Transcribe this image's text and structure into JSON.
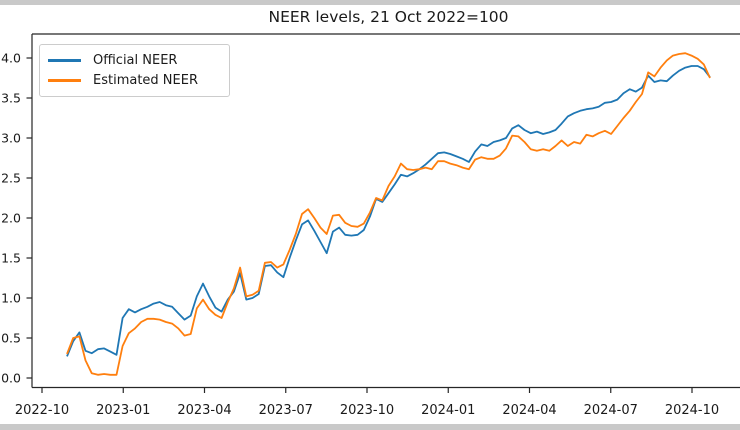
{
  "figure": {
    "border_color": "#c9c9c9",
    "background_color": "#ffffff",
    "axis_color": "#262626",
    "text_color": "#1a1a1a"
  },
  "chart_data": {
    "type": "line",
    "title": "NEER levels, 21 Oct 2022=100",
    "grid": false,
    "legend_position": "upper-left",
    "x_axis": {
      "tick_labels": [
        "2022-10",
        "2023-01",
        "2023-04",
        "2023-07",
        "2023-10",
        "2024-01",
        "2024-04",
        "2024-07",
        "2024-10"
      ]
    },
    "y_axis": {
      "tick_labels_visible": [
        "0.0",
        "0.5",
        "1.0",
        "1.5",
        "2.0",
        "2.5",
        "3.0",
        "3.5",
        "4.0"
      ],
      "tick_values": [
        100.0,
        100.5,
        101.0,
        101.5,
        102.0,
        102.5,
        103.0,
        103.5,
        104.0
      ],
      "ylim": [
        99.88,
        104.3
      ]
    },
    "frequency": "weekly",
    "start_date": "2022-10-28",
    "series": [
      {
        "name": "Official NEER",
        "color": "#1f77b4",
        "values": [
          100.27,
          100.46,
          100.57,
          100.34,
          100.31,
          100.36,
          100.37,
          100.33,
          100.29,
          100.75,
          100.86,
          100.82,
          100.86,
          100.89,
          100.93,
          100.95,
          100.91,
          100.89,
          100.81,
          100.73,
          100.78,
          101.02,
          101.18,
          101.02,
          100.88,
          100.83,
          100.98,
          101.08,
          101.31,
          100.98,
          101.0,
          101.05,
          101.4,
          101.41,
          101.32,
          101.26,
          101.5,
          101.72,
          101.92,
          101.97,
          101.84,
          101.7,
          101.56,
          101.83,
          101.88,
          101.79,
          101.78,
          101.79,
          101.85,
          102.02,
          102.24,
          102.2,
          102.31,
          102.42,
          102.54,
          102.52,
          102.56,
          102.61,
          102.67,
          102.74,
          102.81,
          102.82,
          102.8,
          102.77,
          102.74,
          102.7,
          102.83,
          102.92,
          102.9,
          102.95,
          102.97,
          103.0,
          103.12,
          103.16,
          103.1,
          103.06,
          103.08,
          103.05,
          103.07,
          103.1,
          103.18,
          103.27,
          103.31,
          103.34,
          103.36,
          103.37,
          103.39,
          103.44,
          103.45,
          103.48,
          103.56,
          103.61,
          103.58,
          103.63,
          103.78,
          103.7,
          103.72,
          103.71,
          103.78,
          103.84,
          103.88,
          103.9,
          103.9,
          103.86,
          103.76
        ]
      },
      {
        "name": "Estimated NEER",
        "color": "#ff7f0e",
        "values": [
          100.3,
          100.5,
          100.52,
          100.22,
          100.06,
          100.04,
          100.05,
          100.04,
          100.04,
          100.4,
          100.56,
          100.62,
          100.7,
          100.74,
          100.74,
          100.73,
          100.7,
          100.68,
          100.62,
          100.53,
          100.55,
          100.87,
          100.98,
          100.86,
          100.79,
          100.75,
          100.95,
          101.12,
          101.38,
          101.02,
          101.04,
          101.09,
          101.44,
          101.45,
          101.38,
          101.42,
          101.6,
          101.8,
          102.05,
          102.11,
          102.0,
          101.88,
          101.8,
          102.03,
          102.04,
          101.94,
          101.9,
          101.89,
          101.93,
          102.07,
          102.25,
          102.22,
          102.4,
          102.52,
          102.68,
          102.61,
          102.6,
          102.61,
          102.63,
          102.61,
          102.71,
          102.71,
          102.68,
          102.66,
          102.63,
          102.61,
          102.73,
          102.76,
          102.74,
          102.74,
          102.78,
          102.87,
          103.03,
          103.02,
          102.95,
          102.86,
          102.84,
          102.86,
          102.84,
          102.9,
          102.97,
          102.9,
          102.95,
          102.93,
          103.04,
          103.02,
          103.06,
          103.09,
          103.05,
          103.15,
          103.25,
          103.34,
          103.45,
          103.55,
          103.82,
          103.77,
          103.88,
          103.97,
          104.03,
          104.05,
          104.06,
          104.03,
          103.99,
          103.92,
          103.75
        ]
      }
    ]
  }
}
